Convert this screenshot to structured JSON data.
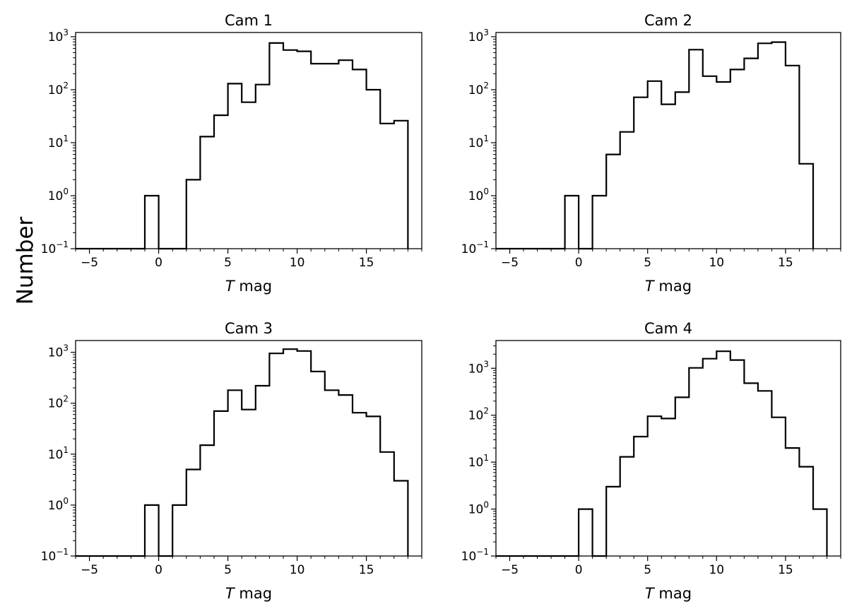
{
  "figure": {
    "ylabel": "Number"
  },
  "chart_data": [
    {
      "type": "bar",
      "title": "Cam 1",
      "xlabel_italic": "T",
      "xlabel_rest": " mag",
      "ylabel": "Number",
      "yscale": "log",
      "xlim": [
        -6,
        19
      ],
      "ylim": [
        0.1,
        1200
      ],
      "xticks": [
        -5,
        0,
        5,
        10,
        15
      ],
      "yticks": [
        {
          "exp": "3",
          "value": 1000
        },
        {
          "exp": "2",
          "value": 100
        },
        {
          "exp": "1",
          "value": 10
        },
        {
          "exp": "0",
          "value": 1
        },
        {
          "exp": "−1",
          "value": 0.1
        }
      ],
      "bin_edges": [
        -6,
        -5,
        -4,
        -3,
        -2,
        -1,
        0,
        1,
        2,
        3,
        4,
        5,
        6,
        7,
        8,
        9,
        10,
        11,
        12,
        13,
        14,
        15,
        16,
        17,
        18
      ],
      "values": [
        0,
        0,
        0,
        0,
        0,
        1,
        0,
        0,
        2,
        13,
        33,
        130,
        58,
        125,
        760,
        560,
        530,
        310,
        310,
        360,
        240,
        100,
        23,
        26
      ]
    },
    {
      "type": "bar",
      "title": "Cam 2",
      "xlabel_italic": "T",
      "xlabel_rest": " mag",
      "ylabel": "Number",
      "yscale": "log",
      "xlim": [
        -6,
        19
      ],
      "ylim": [
        0.1,
        1200
      ],
      "xticks": [
        -5,
        0,
        5,
        10,
        15
      ],
      "yticks": [
        {
          "exp": "3",
          "value": 1000
        },
        {
          "exp": "2",
          "value": 100
        },
        {
          "exp": "1",
          "value": 10
        },
        {
          "exp": "0",
          "value": 1
        },
        {
          "exp": "−1",
          "value": 0.1
        }
      ],
      "bin_edges": [
        -6,
        -5,
        -4,
        -3,
        -2,
        -1,
        0,
        1,
        2,
        3,
        4,
        5,
        6,
        7,
        8,
        9,
        10,
        11,
        12,
        13,
        14,
        15,
        16,
        17
      ],
      "values": [
        0,
        0,
        0,
        0,
        0,
        1,
        0,
        1,
        6,
        16,
        72,
        145,
        53,
        90,
        570,
        180,
        140,
        240,
        390,
        750,
        790,
        285,
        4
      ]
    },
    {
      "type": "bar",
      "title": "Cam 3",
      "xlabel_italic": "T",
      "xlabel_rest": " mag",
      "ylabel": "Number",
      "yscale": "log",
      "xlim": [
        -6,
        19
      ],
      "ylim": [
        0.1,
        1700
      ],
      "xticks": [
        -5,
        0,
        5,
        10,
        15
      ],
      "yticks": [
        {
          "exp": "3",
          "value": 1000
        },
        {
          "exp": "2",
          "value": 100
        },
        {
          "exp": "1",
          "value": 10
        },
        {
          "exp": "0",
          "value": 1
        },
        {
          "exp": "−1",
          "value": 0.1
        }
      ],
      "bin_edges": [
        -6,
        -5,
        -4,
        -3,
        -2,
        -1,
        0,
        1,
        2,
        3,
        4,
        5,
        6,
        7,
        8,
        9,
        10,
        11,
        12,
        13,
        14,
        15,
        16,
        17,
        18
      ],
      "values": [
        0,
        0,
        0,
        0,
        0,
        1,
        0,
        1,
        5,
        15,
        70,
        180,
        75,
        220,
        950,
        1150,
        1060,
        420,
        180,
        145,
        65,
        55,
        11,
        3
      ]
    },
    {
      "type": "bar",
      "title": "Cam 4",
      "xlabel_italic": "T",
      "xlabel_rest": " mag",
      "ylabel": "Number",
      "yscale": "log",
      "xlim": [
        -6,
        19
      ],
      "ylim": [
        0.1,
        3900
      ],
      "xticks": [
        -5,
        0,
        5,
        10,
        15
      ],
      "yticks": [
        {
          "exp": "3",
          "value": 1000
        },
        {
          "exp": "2",
          "value": 100
        },
        {
          "exp": "1",
          "value": 10
        },
        {
          "exp": "0",
          "value": 1
        },
        {
          "exp": "−1",
          "value": 0.1
        }
      ],
      "bin_edges": [
        -6,
        -5,
        -4,
        -3,
        -2,
        -1,
        0,
        1,
        2,
        3,
        4,
        5,
        6,
        7,
        8,
        9,
        10,
        11,
        12,
        13,
        14,
        15,
        16,
        17,
        18
      ],
      "values": [
        0,
        0,
        0,
        0,
        0,
        0,
        1,
        0,
        3,
        13,
        35,
        95,
        85,
        240,
        1020,
        1600,
        2300,
        1500,
        480,
        330,
        90,
        20,
        8,
        1
      ]
    }
  ]
}
